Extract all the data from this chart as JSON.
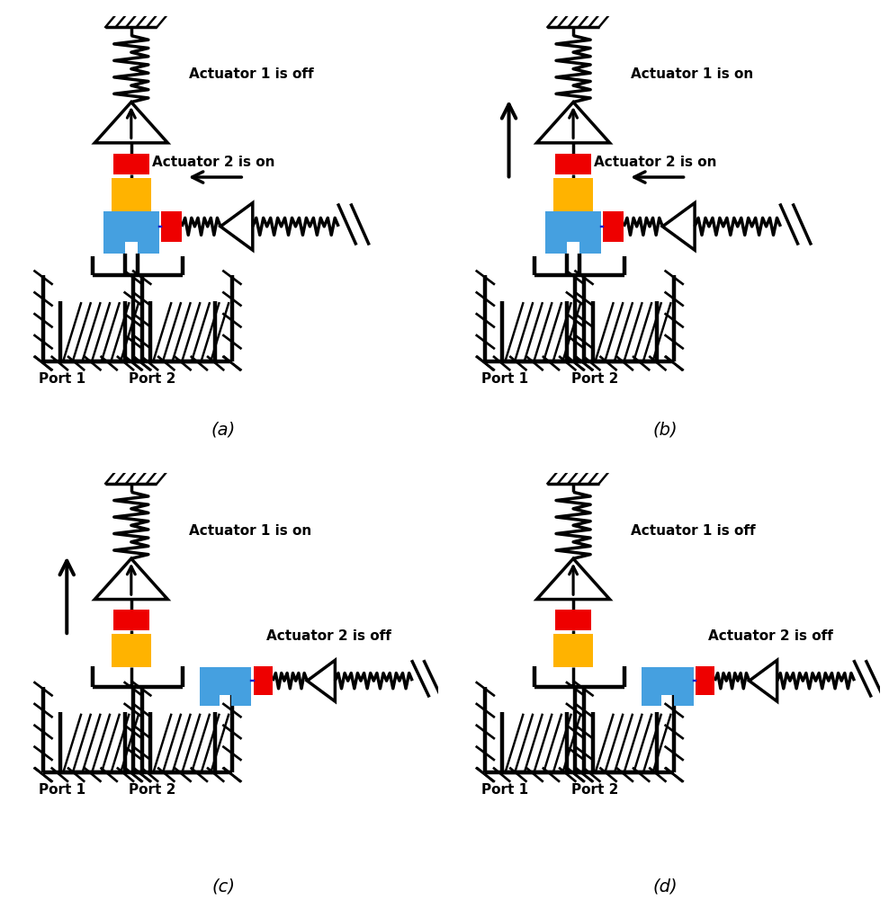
{
  "panels": [
    "(a)",
    "(b)",
    "(c)",
    "(d)"
  ],
  "act1_labels": [
    "Actuator 1 is off",
    "Actuator 1 is on",
    "Actuator 1 is on",
    "Actuator 1 is off"
  ],
  "act2_labels": [
    "Actuator 2 is on",
    "Actuator 2 is on",
    "Actuator 2 is off",
    "Actuator 2 is off"
  ],
  "port1_label": "Port 1",
  "port2_label": "Port 2",
  "red": "#EE0000",
  "yellow": "#FFB300",
  "blue": "#45A0E0",
  "black": "#000000",
  "white": "#FFFFFF",
  "act1_on": [
    false,
    true,
    true,
    false
  ],
  "act2_on": [
    true,
    true,
    false,
    false
  ]
}
